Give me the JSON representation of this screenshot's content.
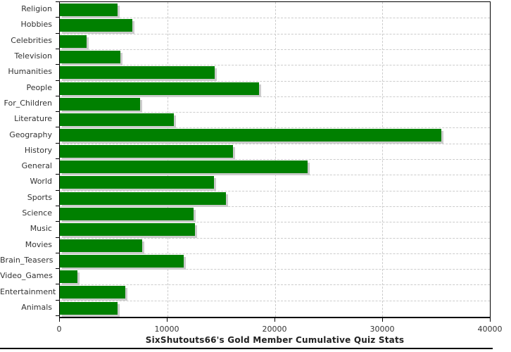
{
  "chart_data": {
    "type": "bar",
    "orientation": "horizontal",
    "title": "SixShutouts66's Gold Member Cumulative Quiz Stats",
    "categories": [
      "Religion",
      "Hobbies",
      "Celebrities",
      "Television",
      "Humanities",
      "People",
      "For_Children",
      "Literature",
      "Geography",
      "History",
      "General",
      "World",
      "Sports",
      "Science",
      "Music",
      "Movies",
      "Brain_Teasers",
      "Video_Games",
      "Entertainment",
      "Animals"
    ],
    "values": [
      5350,
      6775,
      2480,
      5640,
      14400,
      18500,
      7470,
      10620,
      35500,
      16100,
      23050,
      14330,
      15480,
      12430,
      12600,
      7680,
      11500,
      1650,
      6075,
      5390
    ],
    "xlim": [
      0,
      40000
    ],
    "x_ticks": [
      0,
      10000,
      20000,
      30000,
      40000
    ],
    "x_tick_labels": [
      "0",
      "10000",
      "20000",
      "30000",
      "40000"
    ],
    "grid": "dashed",
    "legend": "none",
    "bar_color": "#008000",
    "shadow_color": "#cccccc",
    "grid_color": "#cccccc",
    "axis_color": "#000000",
    "label_color": "#333333",
    "title_color": "#222222"
  }
}
